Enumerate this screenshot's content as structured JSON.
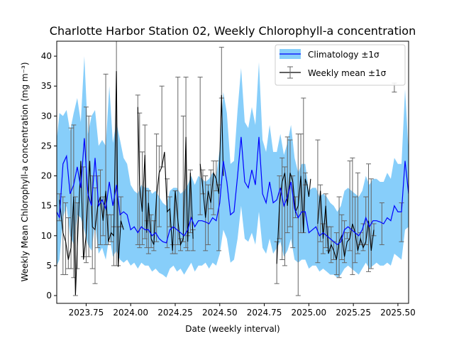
{
  "colors": {
    "climatology_band": "#87CEFA",
    "climatology_line": "#0000FF",
    "weekly_line": "#000000",
    "errorbar": "#666666"
  },
  "chart_data": {
    "type": "line",
    "title": "Charlotte Harbor Station 02, Weekly Chlorophyll-a concentration",
    "xlabel": "Date (weekly interval)",
    "ylabel": "Weekly Mean Chlorophyll-a concentration (mg m⁻³)",
    "xlim": [
      2023.585,
      2025.56
    ],
    "ylim": [
      -1.3,
      42.5
    ],
    "xticks": [
      2023.75,
      2024.0,
      2024.25,
      2024.5,
      2024.75,
      2025.0,
      2025.25,
      2025.5
    ],
    "xtick_labels": [
      "2023.75",
      "2024.00",
      "2024.25",
      "2024.50",
      "2024.75",
      "2025.00",
      "2025.25",
      "2025.50"
    ],
    "yticks": [
      0,
      5,
      10,
      15,
      20,
      25,
      30,
      35,
      40
    ],
    "ytick_labels": [
      "0",
      "5",
      "10",
      "15",
      "20",
      "25",
      "30",
      "35",
      "40"
    ],
    "grid": false,
    "legend_position": "upper right",
    "legend": [
      "Climatology ±1σ",
      "Weekly mean ±1σ"
    ],
    "climatology": {
      "x": [
        2023.585,
        2023.6,
        2023.62,
        2023.64,
        2023.66,
        2023.68,
        2023.7,
        2023.72,
        2023.74,
        2023.76,
        2023.78,
        2023.8,
        2023.82,
        2023.84,
        2023.86,
        2023.88,
        2023.9,
        2023.92,
        2023.94,
        2023.96,
        2023.98,
        2024.0,
        2024.02,
        2024.04,
        2024.06,
        2024.08,
        2024.1,
        2024.12,
        2024.14,
        2024.16,
        2024.18,
        2024.2,
        2024.22,
        2024.24,
        2024.26,
        2024.28,
        2024.3,
        2024.32,
        2024.34,
        2024.36,
        2024.38,
        2024.4,
        2024.42,
        2024.44,
        2024.46,
        2024.48,
        2024.5,
        2024.52,
        2024.54,
        2024.56,
        2024.58,
        2024.6,
        2024.62,
        2024.64,
        2024.66,
        2024.68,
        2024.7,
        2024.72,
        2024.74,
        2024.76,
        2024.78,
        2024.8,
        2024.82,
        2024.84,
        2024.86,
        2024.88,
        2024.9,
        2024.92,
        2024.94,
        2024.96,
        2024.98,
        2025.0,
        2025.02,
        2025.04,
        2025.06,
        2025.08,
        2025.1,
        2025.12,
        2025.14,
        2025.16,
        2025.18,
        2025.2,
        2025.22,
        2025.24,
        2025.26,
        2025.28,
        2025.3,
        2025.32,
        2025.34,
        2025.36,
        2025.38,
        2025.4,
        2025.42,
        2025.44,
        2025.46,
        2025.48,
        2025.5,
        2025.52,
        2025.54,
        2025.56
      ],
      "mean": [
        14.0,
        13.0,
        22.0,
        23.3,
        17.0,
        18.5,
        21.5,
        18.0,
        26.3,
        17.0,
        15.0,
        23.0,
        15.0,
        16.0,
        14.5,
        19.0,
        15.0,
        18.5,
        13.5,
        14.0,
        13.5,
        11.0,
        11.5,
        10.5,
        11.5,
        11.0,
        11.0,
        10.0,
        10.5,
        9.5,
        9.0,
        8.8,
        11.0,
        11.5,
        11.0,
        10.5,
        10.0,
        11.0,
        13.0,
        11.5,
        12.5,
        12.5,
        12.3,
        12.0,
        13.0,
        12.5,
        15.5,
        22.5,
        19.0,
        13.5,
        14.0,
        20.0,
        26.5,
        19.0,
        18.0,
        21.0,
        18.5,
        26.5,
        17.0,
        15.5,
        19.0,
        15.5,
        16.0,
        18.0,
        15.0,
        16.5,
        19.0,
        14.5,
        13.0,
        14.0,
        14.0,
        10.5,
        11.0,
        11.5,
        10.0,
        10.5,
        10.0,
        9.5,
        9.0,
        8.5,
        9.0,
        11.0,
        11.5,
        11.0,
        10.5,
        10.0,
        11.0,
        13.0,
        11.5,
        12.5,
        12.5,
        12.3,
        12.0,
        13.0,
        12.5,
        15.0,
        14.0,
        14.0,
        22.5,
        17.0
      ],
      "lower": [
        5.0,
        6.0,
        13.0,
        15.0,
        10.0,
        8.5,
        13.5,
        13.0,
        11.0,
        8.5,
        7.5,
        12.0,
        7.0,
        8.0,
        6.0,
        10.0,
        6.5,
        7.5,
        6.0,
        5.5,
        6.0,
        5.0,
        5.5,
        4.5,
        5.5,
        5.0,
        5.0,
        4.0,
        4.5,
        3.8,
        3.5,
        3.0,
        4.5,
        5.0,
        4.0,
        4.5,
        3.5,
        4.5,
        5.5,
        4.0,
        5.0,
        5.0,
        5.5,
        4.5,
        5.5,
        5.0,
        7.0,
        11.0,
        9.5,
        5.5,
        6.0,
        9.5,
        15.0,
        9.5,
        9.0,
        10.5,
        8.5,
        14.0,
        8.0,
        7.0,
        9.5,
        7.0,
        8.0,
        9.0,
        6.5,
        7.5,
        9.5,
        6.0,
        5.5,
        6.0,
        6.0,
        4.5,
        5.0,
        5.0,
        4.0,
        4.5,
        4.0,
        3.5,
        3.5,
        3.0,
        3.5,
        4.5,
        5.0,
        4.5,
        4.0,
        3.5,
        4.5,
        5.5,
        4.5,
        5.0,
        5.5,
        5.0,
        5.0,
        5.5,
        5.0,
        7.0,
        6.5,
        6.0,
        11.0,
        11.5
      ],
      "upper": [
        26.0,
        30.5,
        30.0,
        31.0,
        27.5,
        30.5,
        33.0,
        29.0,
        40.0,
        27.0,
        30.0,
        31.0,
        25.0,
        26.0,
        25.0,
        35.0,
        25.5,
        29.0,
        26.0,
        23.0,
        22.0,
        18.5,
        17.5,
        17.0,
        18.5,
        18.0,
        18.0,
        17.0,
        17.5,
        16.5,
        15.5,
        15.0,
        17.5,
        18.0,
        18.0,
        17.0,
        17.5,
        18.5,
        20.0,
        18.5,
        20.0,
        19.5,
        19.0,
        19.5,
        20.5,
        20.0,
        24.5,
        34.0,
        30.5,
        22.0,
        22.5,
        31.0,
        38.0,
        29.0,
        28.0,
        31.5,
        28.5,
        39.0,
        26.0,
        24.0,
        28.5,
        24.0,
        24.0,
        27.0,
        23.5,
        25.5,
        28.5,
        23.0,
        20.5,
        22.0,
        22.0,
        17.5,
        18.0,
        18.0,
        16.5,
        17.0,
        16.5,
        15.5,
        15.0,
        14.0,
        15.0,
        17.5,
        18.0,
        17.5,
        17.0,
        16.5,
        17.5,
        20.0,
        18.5,
        19.5,
        19.5,
        19.0,
        19.0,
        20.5,
        19.5,
        23.0,
        22.0,
        22.0,
        34.5,
        24.0
      ]
    },
    "weekly": {
      "segments": [
        [
          [
            2023.6,
            16.0
          ],
          [
            2023.62,
            10.5
          ],
          [
            2023.635,
            9.0
          ],
          [
            2023.65,
            6.0
          ],
          [
            2023.665,
            8.0
          ],
          [
            2023.68,
            16.5
          ],
          [
            2023.69,
            0.1
          ],
          [
            2023.7,
            8.0
          ],
          [
            2023.72,
            22.5
          ],
          [
            2023.735,
            6.0
          ],
          [
            2023.75,
            10.0
          ],
          [
            2023.77,
            22.5
          ],
          [
            2023.785,
            11.5
          ],
          [
            2023.8,
            11.0
          ],
          [
            2023.815,
            15.0
          ],
          [
            2023.83,
            16.5
          ],
          [
            2023.845,
            12.5
          ],
          [
            2023.86,
            17.5
          ],
          [
            2023.875,
            9.0
          ],
          [
            2023.89,
            10.5
          ],
          [
            2023.905,
            10.0
          ],
          [
            2023.92,
            37.5
          ],
          [
            2023.93,
            4.8
          ],
          [
            2023.945,
            12.5
          ],
          [
            2023.96,
            11.0
          ]
        ],
        [
          [
            2024.04,
            31.5
          ],
          [
            2024.05,
            18.5
          ],
          [
            2024.065,
            14.0
          ],
          [
            2024.08,
            23.5
          ],
          [
            2024.09,
            10.5
          ],
          [
            2024.1,
            15.5
          ],
          [
            2024.115,
            9.5
          ],
          [
            2024.13,
            8.5
          ],
          [
            2024.145,
            16.5
          ],
          [
            2024.16,
            20.5
          ],
          [
            2024.175,
            21.5
          ],
          [
            2024.19,
            24.0
          ],
          [
            2024.205,
            14.0
          ],
          [
            2024.22,
            14.5
          ],
          [
            2024.235,
            7.5
          ],
          [
            2024.25,
            17.5
          ],
          [
            2024.265,
            12.5
          ],
          [
            2024.28,
            8.5
          ],
          [
            2024.295,
            9.5
          ],
          [
            2024.31,
            26.5
          ],
          [
            2024.32,
            9.0
          ],
          [
            2024.335,
            20.5
          ],
          [
            2024.35,
            9.5
          ]
        ],
        [
          [
            2024.39,
            22.0
          ],
          [
            2024.405,
            18.0
          ],
          [
            2024.42,
            13.0
          ],
          [
            2024.435,
            17.5
          ],
          [
            2024.45,
            15.5
          ],
          [
            2024.465,
            20.5
          ],
          [
            2024.48,
            19.5
          ],
          [
            2024.495,
            17.0
          ],
          [
            2024.51,
            33.5
          ],
          [
            2024.52,
            20.0
          ]
        ],
        [
          [
            2024.82,
            5.3
          ],
          [
            2024.835,
            15.0
          ],
          [
            2024.85,
            19.0
          ],
          [
            2024.865,
            20.5
          ],
          [
            2024.88,
            15.0
          ],
          [
            2024.895,
            20.5
          ],
          [
            2024.91,
            19.0
          ],
          [
            2024.925,
            14.0
          ],
          [
            2024.94,
            15.0
          ],
          [
            2024.955,
            20.0
          ],
          [
            2024.97,
            10.5
          ],
          [
            2024.98,
            19.5
          ],
          [
            2024.99,
            18.5
          ],
          [
            2025.0,
            16.5
          ],
          [
            2025.01,
            19.5
          ]
        ],
        [
          [
            2025.05,
            12.0
          ],
          [
            2025.065,
            17.5
          ],
          [
            2025.08,
            9.5
          ],
          [
            2025.095,
            15.0
          ],
          [
            2025.11,
            7.0
          ],
          [
            2025.125,
            8.5
          ],
          [
            2025.14,
            7.5
          ],
          [
            2025.155,
            6.0
          ],
          [
            2025.17,
            9.0
          ],
          [
            2025.185,
            10.0
          ],
          [
            2025.2,
            6.5
          ],
          [
            2025.215,
            9.0
          ],
          [
            2025.23,
            9.5
          ],
          [
            2025.245,
            12.0
          ],
          [
            2025.26,
            10.5
          ],
          [
            2025.275,
            7.5
          ],
          [
            2025.29,
            9.5
          ],
          [
            2025.305,
            8.0
          ],
          [
            2025.32,
            9.0
          ],
          [
            2025.335,
            12.5
          ],
          [
            2025.35,
            7.5
          ],
          [
            2025.365,
            11.0
          ]
        ]
      ],
      "errorbars": [
        [
          2023.6,
          12.5,
          17.0
        ],
        [
          2023.62,
          3.5,
          16.5
        ],
        [
          2023.635,
          3.5,
          15.5
        ],
        [
          2023.65,
          4.5,
          13.0
        ],
        [
          2023.665,
          4.5,
          28.0
        ],
        [
          2023.68,
          3.0,
          28.5
        ],
        [
          2023.69,
          0.0,
          16.5
        ],
        [
          2023.7,
          4.5,
          15.5
        ],
        [
          2023.735,
          6.5,
          21.5
        ],
        [
          2023.75,
          5.5,
          31.5
        ],
        [
          2023.765,
          6.5,
          30.0
        ],
        [
          2023.785,
          4.5,
          20.0
        ],
        [
          2023.8,
          2.0,
          18.0
        ],
        [
          2023.815,
          8.0,
          20.0
        ],
        [
          2023.83,
          8.5,
          21.0
        ],
        [
          2023.845,
          10.0,
          16.5
        ],
        [
          2023.86,
          8.5,
          37.0
        ],
        [
          2023.875,
          8.5,
          13.5
        ],
        [
          2023.89,
          9.0,
          13.5
        ],
        [
          2023.905,
          5.0,
          11.5
        ],
        [
          2023.92,
          5.0,
          44.0
        ],
        [
          2023.93,
          5.0,
          11.5
        ],
        [
          2023.945,
          11.5,
          16.5
        ],
        [
          2024.04,
          8.5,
          33.5
        ],
        [
          2024.05,
          8.0,
          30.5
        ],
        [
          2024.065,
          8.5,
          24.0
        ],
        [
          2024.08,
          9.5,
          28.5
        ],
        [
          2024.09,
          8.0,
          12.5
        ],
        [
          2024.1,
          7.0,
          17.5
        ],
        [
          2024.115,
          8.0,
          13.5
        ],
        [
          2024.13,
          7.5,
          12.5
        ],
        [
          2024.145,
          9.0,
          27.0
        ],
        [
          2024.16,
          11.5,
          25.0
        ],
        [
          2024.175,
          21.5,
          35.0
        ],
        [
          2024.205,
          8.0,
          19.5
        ],
        [
          2024.22,
          11.5,
          16.5
        ],
        [
          2024.235,
          7.0,
          8.5
        ],
        [
          2024.25,
          7.0,
          17.5
        ],
        [
          2024.265,
          8.5,
          36.5
        ],
        [
          2024.28,
          7.5,
          9.5
        ],
        [
          2024.295,
          9.0,
          30.0
        ],
        [
          2024.31,
          8.0,
          36.5
        ],
        [
          2024.32,
          7.5,
          10.0
        ],
        [
          2024.335,
          10.5,
          21.0
        ],
        [
          2024.35,
          7.5,
          11.0
        ],
        [
          2024.39,
          13.5,
          36.5
        ],
        [
          2024.405,
          17.0,
          21.0
        ],
        [
          2024.42,
          7.5,
          20.0
        ],
        [
          2024.435,
          8.5,
          18.5
        ],
        [
          2024.45,
          14.5,
          21.0
        ],
        [
          2024.465,
          13.5,
          22.5
        ],
        [
          2024.48,
          17.5,
          22.5
        ],
        [
          2024.495,
          7.5,
          18.5
        ],
        [
          2024.51,
          33.0,
          41.5
        ],
        [
          2024.82,
          2.0,
          9.0
        ],
        [
          2024.835,
          9.5,
          20.0
        ],
        [
          2024.85,
          6.0,
          23.0
        ],
        [
          2024.865,
          5.0,
          21.5
        ],
        [
          2024.88,
          10.5,
          26.5
        ],
        [
          2024.895,
          11.5,
          26.0
        ],
        [
          2024.91,
          8.0,
          20.0
        ],
        [
          2024.925,
          13.0,
          16.5
        ],
        [
          2024.94,
          0.0,
          27.0
        ],
        [
          2024.955,
          10.5,
          27.0
        ],
        [
          2024.97,
          10.5,
          33.0
        ],
        [
          2024.98,
          18.5,
          20.5
        ],
        [
          2025.05,
          5.5,
          26.0
        ],
        [
          2025.065,
          9.0,
          18.5
        ],
        [
          2025.08,
          7.0,
          12.0
        ],
        [
          2025.095,
          8.0,
          17.0
        ],
        [
          2025.11,
          7.5,
          11.5
        ],
        [
          2025.125,
          5.5,
          11.5
        ],
        [
          2025.14,
          6.0,
          9.0
        ],
        [
          2025.155,
          3.5,
          10.5
        ],
        [
          2025.17,
          3.0,
          16.5
        ],
        [
          2025.185,
          6.0,
          13.5
        ],
        [
          2025.2,
          5.5,
          12.5
        ],
        [
          2025.215,
          9.5,
          10.5
        ],
        [
          2025.23,
          7.5,
          22.5
        ],
        [
          2025.245,
          3.5,
          23.0
        ],
        [
          2025.26,
          5.5,
          16.5
        ],
        [
          2025.275,
          7.0,
          20.5
        ],
        [
          2025.29,
          8.5,
          10.5
        ],
        [
          2025.305,
          7.5,
          12.0
        ],
        [
          2025.32,
          8.5,
          16.5
        ],
        [
          2025.335,
          4.0,
          22.0
        ],
        [
          2025.35,
          4.5,
          19.5
        ],
        [
          2025.365,
          10.0,
          12.0
        ],
        [
          2025.41,
          8.5,
          15.5
        ],
        [
          2025.48,
          34.0,
          35.5
        ],
        [
          2025.52,
          9.0,
          15.5
        ]
      ]
    }
  }
}
